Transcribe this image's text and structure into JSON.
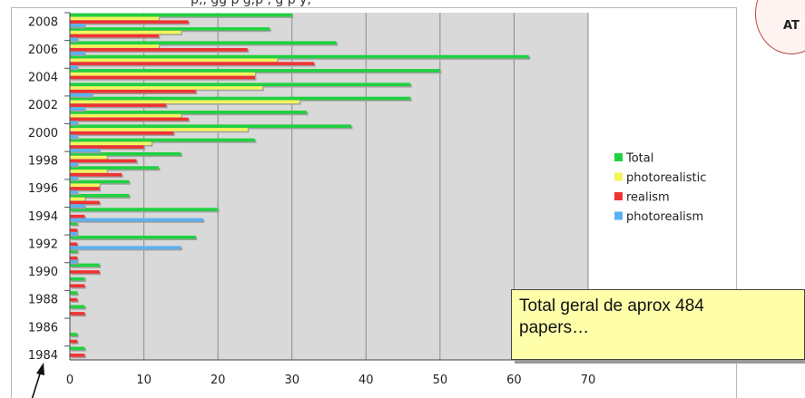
{
  "snippet_text": "p,,   gg p   g,p     ,   g p y,",
  "badge": "AT",
  "note": {
    "line1": "Total geral de aprox 484",
    "line2": "papers…"
  },
  "colors": {
    "total": "#1fd13f",
    "photorealistic": "#f2f55c",
    "realism": "#ef3333",
    "photorealism": "#5bb1f0",
    "plot_bg": "#d9d9d9",
    "grid": "#8a8a8a"
  },
  "chart_data": {
    "type": "bar",
    "orientation": "horizontal",
    "categories": [
      "1984",
      "1985",
      "1986",
      "1987",
      "1988",
      "1989",
      "1990",
      "1991",
      "1992",
      "1993",
      "1994",
      "1995",
      "1996",
      "1997",
      "1998",
      "1999",
      "2000",
      "2001",
      "2002",
      "2003",
      "2004",
      "2005",
      "2006",
      "2007",
      "2008"
    ],
    "y_tick_labels": [
      "1984",
      "1986",
      "1988",
      "1990",
      "1992",
      "1994",
      "1996",
      "1998",
      "2000",
      "2002",
      "2004",
      "2006",
      "2008"
    ],
    "series": [
      {
        "name": "Total",
        "values": [
          2,
          1,
          0,
          2,
          1,
          2,
          4,
          1,
          17,
          1,
          20,
          8,
          8,
          12,
          15,
          25,
          38,
          32,
          46,
          46,
          50,
          62,
          36,
          27,
          30
        ]
      },
      {
        "name": "photorealistic",
        "values": [
          0,
          0,
          0,
          0,
          0,
          0,
          0,
          0,
          0,
          0,
          0,
          2,
          4,
          5,
          5,
          11,
          24,
          15,
          31,
          26,
          25,
          28,
          12,
          15,
          12
        ]
      },
      {
        "name": "realism",
        "values": [
          2,
          1,
          0,
          2,
          1,
          2,
          4,
          1,
          1,
          1,
          2,
          4,
          4,
          7,
          9,
          10,
          14,
          16,
          13,
          17,
          25,
          33,
          24,
          12,
          16
        ]
      },
      {
        "name": "photorealism",
        "values": [
          0,
          0,
          0,
          0,
          0,
          0,
          0,
          1,
          15,
          1,
          18,
          2,
          1,
          1,
          1,
          4,
          1,
          1,
          2,
          3,
          0,
          1,
          2,
          1,
          2
        ]
      }
    ],
    "xlim": [
      0,
      70
    ],
    "x_ticks": [
      0,
      10,
      20,
      30,
      40,
      50,
      60,
      70
    ],
    "grid": true,
    "legend_position": "right"
  }
}
